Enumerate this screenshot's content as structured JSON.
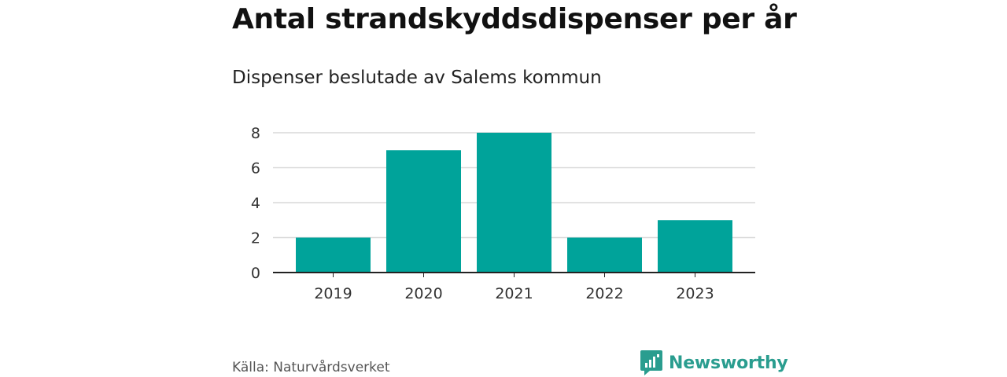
{
  "header": {
    "title": "Antal strandskyddsdispenser per år",
    "subtitle": "Dispenser beslutade av Salems kommun"
  },
  "footer": {
    "source": "Källa: Naturvårdsverket",
    "brand": "Newsworthy"
  },
  "colors": {
    "bar": "#00a39a",
    "brand": "#2a9d8f",
    "grid": "#d9d9d9",
    "axis": "#222222"
  },
  "chart_data": {
    "type": "bar",
    "title": "Antal strandskyddsdispenser per år",
    "subtitle": "Dispenser beslutade av Salems kommun",
    "categories": [
      "2019",
      "2020",
      "2021",
      "2022",
      "2023"
    ],
    "values": [
      2,
      7,
      8,
      2,
      3
    ],
    "xlabel": "",
    "ylabel": "",
    "ylim": [
      0,
      8
    ],
    "yticks": [
      "0",
      "2",
      "4",
      "6",
      "8"
    ],
    "grid": true,
    "legend": "none"
  }
}
